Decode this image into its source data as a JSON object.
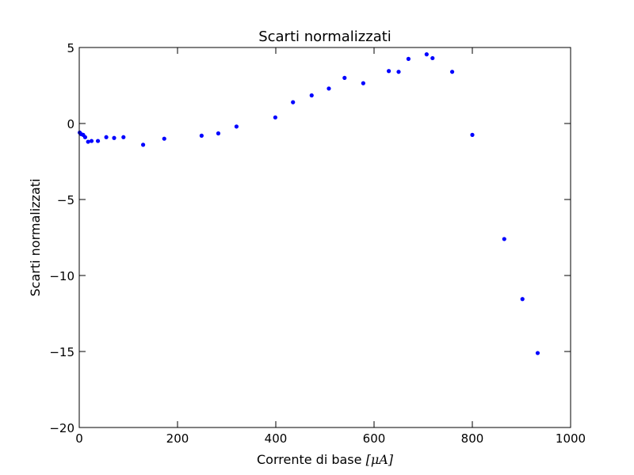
{
  "chart_data": {
    "type": "scatter",
    "title": "Scarti normalizzati",
    "xlabel": "Corrente di base",
    "xlabel_unit": "[μA]",
    "ylabel": "Scarti normalizzati",
    "xlim": [
      0,
      1000
    ],
    "ylim": [
      -20,
      5
    ],
    "xticks": [
      0,
      200,
      400,
      600,
      800,
      1000
    ],
    "yticks": [
      5,
      0,
      -5,
      -10,
      -15,
      -20
    ],
    "xtick_labels": [
      "0",
      "200",
      "400",
      "600",
      "800",
      "1000"
    ],
    "ytick_labels": [
      "5",
      "0",
      "−5",
      "−10",
      "−15",
      "−20"
    ],
    "grid": false,
    "marker_color": "#0000ff",
    "points": [
      {
        "x": 1,
        "y": -0.6
      },
      {
        "x": 4,
        "y": -0.7
      },
      {
        "x": 8,
        "y": -0.75
      },
      {
        "x": 12,
        "y": -0.9
      },
      {
        "x": 18,
        "y": -1.2
      },
      {
        "x": 25,
        "y": -1.15
      },
      {
        "x": 38,
        "y": -1.15
      },
      {
        "x": 55,
        "y": -0.9
      },
      {
        "x": 71,
        "y": -0.95
      },
      {
        "x": 90,
        "y": -0.9
      },
      {
        "x": 130,
        "y": -1.4
      },
      {
        "x": 173,
        "y": -1.0
      },
      {
        "x": 249,
        "y": -0.8
      },
      {
        "x": 283,
        "y": -0.65
      },
      {
        "x": 320,
        "y": -0.2
      },
      {
        "x": 399,
        "y": 0.4
      },
      {
        "x": 435,
        "y": 1.4
      },
      {
        "x": 473,
        "y": 1.85
      },
      {
        "x": 508,
        "y": 2.3
      },
      {
        "x": 540,
        "y": 3.0
      },
      {
        "x": 578,
        "y": 2.65
      },
      {
        "x": 630,
        "y": 3.45
      },
      {
        "x": 650,
        "y": 3.4
      },
      {
        "x": 670,
        "y": 4.25
      },
      {
        "x": 707,
        "y": 4.55
      },
      {
        "x": 719,
        "y": 4.3
      },
      {
        "x": 759,
        "y": 3.4
      },
      {
        "x": 800,
        "y": -0.75
      },
      {
        "x": 865,
        "y": -7.6
      },
      {
        "x": 902,
        "y": -11.55
      },
      {
        "x": 933,
        "y": -15.1
      }
    ]
  }
}
